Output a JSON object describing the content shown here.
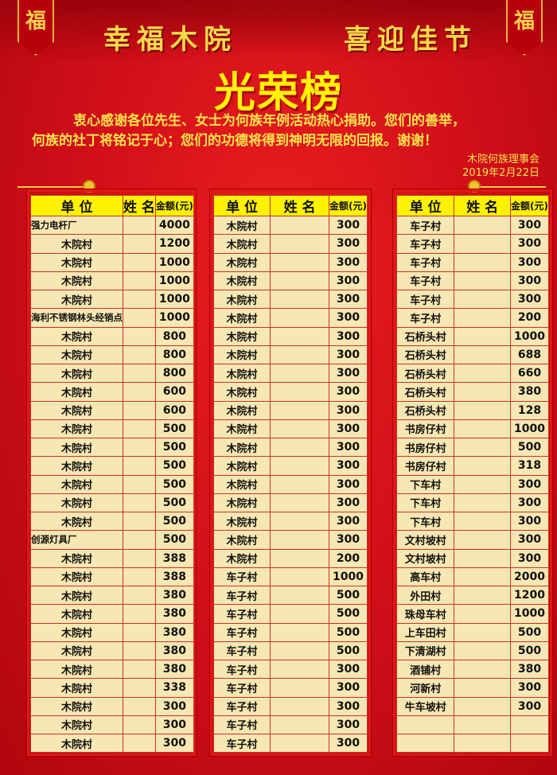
{
  "header": {
    "fu_char": "福",
    "slogan_left": "幸福木院",
    "slogan_right": "喜迎佳节",
    "title": "光荣榜",
    "intro_line1": "衷心感谢各位先生、女士为何族年例活动热心捐助。您们的善举，",
    "intro_line2": "何族的社丁将铭记于心；您们的功德将得到神明无限的回报。谢谢！",
    "signer": "木院何族理事会",
    "date": "2019年2月22日"
  },
  "columns": {
    "unit": "单 位",
    "name": "姓 名",
    "amount": "金额(元)"
  },
  "colors": {
    "background": "#d4101a",
    "header_row": "#fff200",
    "cell": "#f7e7b2",
    "title": "#fff200",
    "text_gold": "#ffe44a"
  },
  "tables": [
    {
      "rows": [
        {
          "unit": "强力电杆厂",
          "name": "",
          "amount": "4000"
        },
        {
          "unit": "木院村",
          "name": "",
          "amount": "1200"
        },
        {
          "unit": "木院村",
          "name": "",
          "amount": "1000"
        },
        {
          "unit": "木院村",
          "name": "",
          "amount": "1000"
        },
        {
          "unit": "木院村",
          "name": "",
          "amount": "1000"
        },
        {
          "unit": "海利不锈钢林头经销点",
          "name": "",
          "amount": "1000"
        },
        {
          "unit": "木院村",
          "name": "",
          "amount": "800"
        },
        {
          "unit": "木院村",
          "name": "",
          "amount": "800"
        },
        {
          "unit": "木院村",
          "name": "",
          "amount": "800"
        },
        {
          "unit": "木院村",
          "name": "",
          "amount": "600"
        },
        {
          "unit": "木院村",
          "name": "",
          "amount": "600"
        },
        {
          "unit": "木院村",
          "name": "",
          "amount": "500"
        },
        {
          "unit": "木院村",
          "name": "",
          "amount": "500"
        },
        {
          "unit": "木院村",
          "name": "",
          "amount": "500"
        },
        {
          "unit": "木院村",
          "name": "",
          "amount": "500"
        },
        {
          "unit": "木院村",
          "name": "",
          "amount": "500"
        },
        {
          "unit": "木院村",
          "name": "",
          "amount": "500"
        },
        {
          "unit": "创源灯具厂",
          "name": "",
          "amount": "500"
        },
        {
          "unit": "木院村",
          "name": "",
          "amount": "388"
        },
        {
          "unit": "木院村",
          "name": "",
          "amount": "388"
        },
        {
          "unit": "木院村",
          "name": "",
          "amount": "380"
        },
        {
          "unit": "木院村",
          "name": "",
          "amount": "380"
        },
        {
          "unit": "木院村",
          "name": "",
          "amount": "380"
        },
        {
          "unit": "木院村",
          "name": "",
          "amount": "380"
        },
        {
          "unit": "木院村",
          "name": "",
          "amount": "380"
        },
        {
          "unit": "木院村",
          "name": "",
          "amount": "338"
        },
        {
          "unit": "木院村",
          "name": "",
          "amount": "300"
        },
        {
          "unit": "木院村",
          "name": "",
          "amount": "300"
        },
        {
          "unit": "木院村",
          "name": "",
          "amount": "300"
        }
      ]
    },
    {
      "rows": [
        {
          "unit": "木院村",
          "name": "",
          "amount": "300"
        },
        {
          "unit": "木院村",
          "name": "",
          "amount": "300"
        },
        {
          "unit": "木院村",
          "name": "",
          "amount": "300"
        },
        {
          "unit": "木院村",
          "name": "",
          "amount": "300"
        },
        {
          "unit": "木院村",
          "name": "",
          "amount": "300"
        },
        {
          "unit": "木院村",
          "name": "",
          "amount": "300"
        },
        {
          "unit": "木院村",
          "name": "",
          "amount": "300"
        },
        {
          "unit": "木院村",
          "name": "",
          "amount": "300"
        },
        {
          "unit": "木院村",
          "name": "",
          "amount": "300"
        },
        {
          "unit": "木院村",
          "name": "",
          "amount": "300"
        },
        {
          "unit": "木院村",
          "name": "",
          "amount": "300"
        },
        {
          "unit": "木院村",
          "name": "",
          "amount": "300"
        },
        {
          "unit": "木院村",
          "name": "",
          "amount": "300"
        },
        {
          "unit": "木院村",
          "name": "",
          "amount": "300"
        },
        {
          "unit": "木院村",
          "name": "",
          "amount": "300"
        },
        {
          "unit": "木院村",
          "name": "",
          "amount": "300"
        },
        {
          "unit": "木院村",
          "name": "",
          "amount": "300"
        },
        {
          "unit": "木院村",
          "name": "",
          "amount": "300"
        },
        {
          "unit": "木院村",
          "name": "",
          "amount": "200"
        },
        {
          "unit": "车子村",
          "name": "",
          "amount": "1000"
        },
        {
          "unit": "车子村",
          "name": "",
          "amount": "500"
        },
        {
          "unit": "车子村",
          "name": "",
          "amount": "500"
        },
        {
          "unit": "车子村",
          "name": "",
          "amount": "500"
        },
        {
          "unit": "车子村",
          "name": "",
          "amount": "500"
        },
        {
          "unit": "车子村",
          "name": "",
          "amount": "300"
        },
        {
          "unit": "车子村",
          "name": "",
          "amount": "300"
        },
        {
          "unit": "车子村",
          "name": "",
          "amount": "300"
        },
        {
          "unit": "车子村",
          "name": "",
          "amount": "300"
        },
        {
          "unit": "车子村",
          "name": "",
          "amount": "300"
        }
      ]
    },
    {
      "rows": [
        {
          "unit": "车子村",
          "name": "",
          "amount": "300"
        },
        {
          "unit": "车子村",
          "name": "",
          "amount": "300"
        },
        {
          "unit": "车子村",
          "name": "",
          "amount": "300"
        },
        {
          "unit": "车子村",
          "name": "",
          "amount": "300"
        },
        {
          "unit": "车子村",
          "name": "",
          "amount": "300"
        },
        {
          "unit": "车子村",
          "name": "",
          "amount": "200"
        },
        {
          "unit": "石桥头村",
          "name": "",
          "amount": "1000"
        },
        {
          "unit": "石桥头村",
          "name": "",
          "amount": "688"
        },
        {
          "unit": "石桥头村",
          "name": "",
          "amount": "660"
        },
        {
          "unit": "石桥头村",
          "name": "",
          "amount": "380"
        },
        {
          "unit": "石桥头村",
          "name": "",
          "amount": "128"
        },
        {
          "unit": "书房仔村",
          "name": "",
          "amount": "1000"
        },
        {
          "unit": "书房仔村",
          "name": "",
          "amount": "500"
        },
        {
          "unit": "书房仔村",
          "name": "",
          "amount": "318"
        },
        {
          "unit": "下车村",
          "name": "",
          "amount": "300"
        },
        {
          "unit": "下车村",
          "name": "",
          "amount": "300"
        },
        {
          "unit": "下车村",
          "name": "",
          "amount": "300"
        },
        {
          "unit": "文村坡村",
          "name": "",
          "amount": "300"
        },
        {
          "unit": "文村坡村",
          "name": "",
          "amount": "300"
        },
        {
          "unit": "高车村",
          "name": "",
          "amount": "2000"
        },
        {
          "unit": "外田村",
          "name": "",
          "amount": "1200"
        },
        {
          "unit": "珠母车村",
          "name": "",
          "amount": "1000"
        },
        {
          "unit": "上车田村",
          "name": "",
          "amount": "500"
        },
        {
          "unit": "下清湖村",
          "name": "",
          "amount": "500"
        },
        {
          "unit": "酒铺村",
          "name": "",
          "amount": "380"
        },
        {
          "unit": "河新村",
          "name": "",
          "amount": "300"
        },
        {
          "unit": "牛车坡村",
          "name": "",
          "amount": "300"
        },
        {
          "unit": "",
          "name": "",
          "amount": ""
        },
        {
          "unit": "",
          "name": "",
          "amount": ""
        }
      ]
    }
  ]
}
